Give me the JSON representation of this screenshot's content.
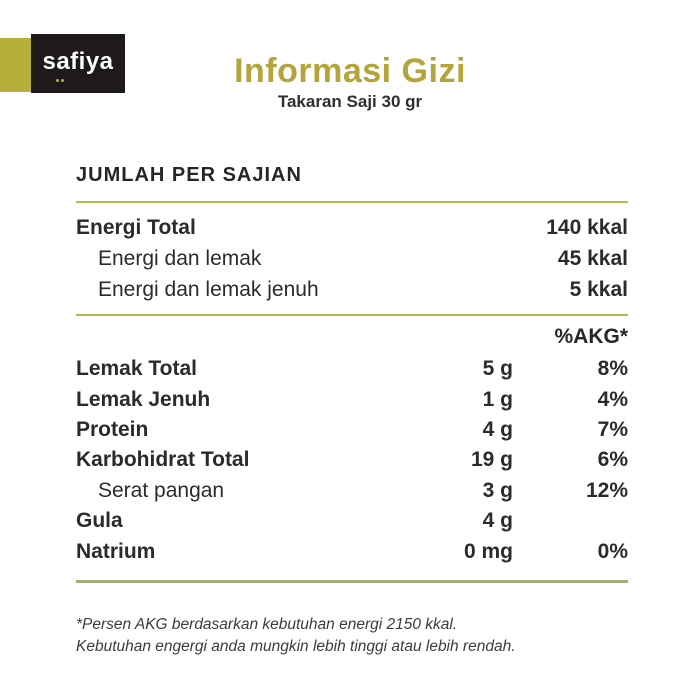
{
  "brand": {
    "logo_text": "safiya"
  },
  "header": {
    "title": "Informasi Gizi",
    "subtitle": "Takaran Saji 30 gr"
  },
  "table": {
    "section_title": "JUMLAH PER SAJIAN",
    "energy_rows": [
      {
        "label": "Energi Total",
        "value": "140 kkal"
      },
      {
        "label": "Energi dan lemak",
        "value": "45 kkal"
      },
      {
        "label": "Energi dan lemak jenuh",
        "value": "5 kkal"
      }
    ],
    "akg_header": "%AKG*",
    "nutrient_rows": [
      {
        "label": "Lemak Total",
        "amount": "5 g",
        "akg": "8%"
      },
      {
        "label": "Lemak Jenuh",
        "amount": "1 g",
        "akg": "4%"
      },
      {
        "label": "Protein",
        "amount": "4 g",
        "akg": "7%"
      },
      {
        "label": "Karbohidrat Total",
        "amount": "19 g",
        "akg": "6%"
      },
      {
        "label": "Serat pangan",
        "amount": "3 g",
        "akg": "12%"
      },
      {
        "label": "Gula",
        "amount": "4 g",
        "akg": ""
      },
      {
        "label": "Natrium",
        "amount": "0 mg",
        "akg": "0%"
      }
    ]
  },
  "footnote": {
    "line1": "*Persen AKG berdasarkan kebutuhan energi 2150 kkal.",
    "line2": "Kebutuhan engergi anda mungkin lebih tinggi atau lebih rendah."
  },
  "colors": {
    "accent_olive": "#b3a53b",
    "olive_square": "#b6b03a",
    "rule_line": "#b9b94e",
    "footer_rule_line": "#a9ad7c",
    "logo_background": "#1e1a1b",
    "text": "#2b2b2b"
  }
}
